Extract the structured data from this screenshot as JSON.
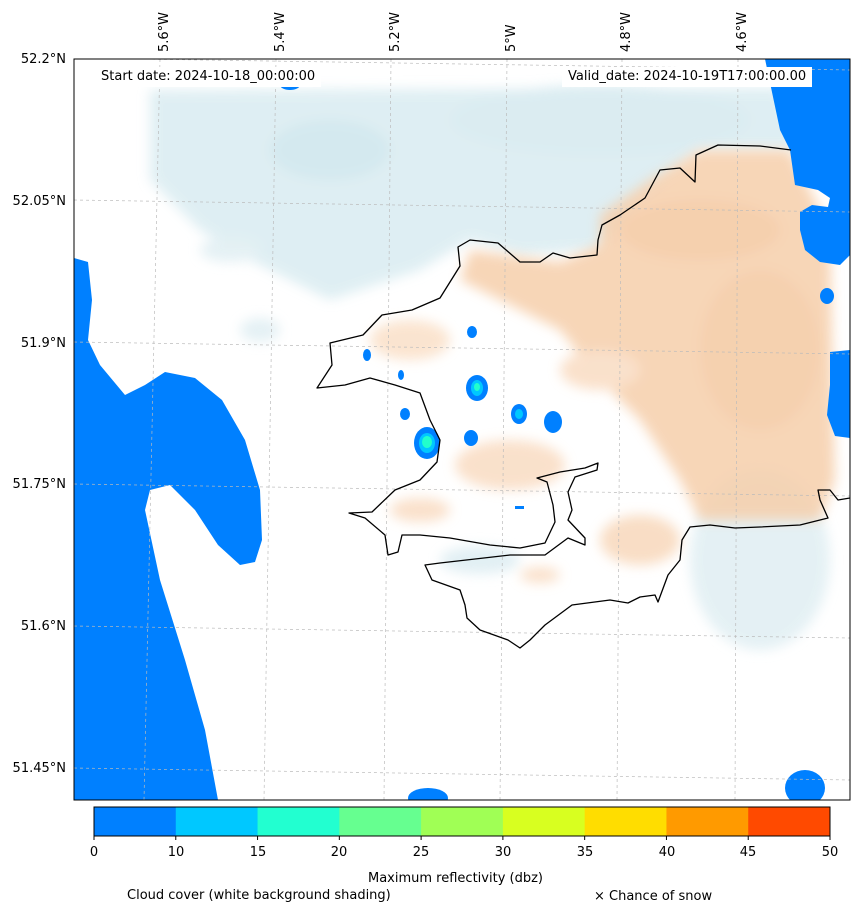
{
  "map": {
    "start_date": "Start date: 2024-10-18_00:00:00",
    "valid_date": "Valid_date: 2024-10-19T17:00:00.00",
    "lon_ticks": [
      "5.6°W",
      "5.4°W",
      "5.2°W",
      "5°W",
      "4.8°W",
      "4.6°W"
    ],
    "lat_ticks": [
      "52.2°N",
      "52.05°N",
      "51.9°N",
      "51.75°N",
      "51.6°N",
      "51.45°N"
    ],
    "colors": {
      "sea": "#0080ff",
      "cloud_shading": "#d4e9ef",
      "warm_shading": "#f6cfab",
      "echo_core": "#22ffcc",
      "coastline": "#000000"
    }
  },
  "colorbar": {
    "label": "Maximum reflectivity (dbz)",
    "ticks": [
      "0",
      "10",
      "15",
      "20",
      "25",
      "30",
      "35",
      "40",
      "45",
      "50"
    ],
    "colors": [
      "#0080ff",
      "#00c8ff",
      "#22ffd0",
      "#66ff90",
      "#a0ff55",
      "#d8ff20",
      "#ffdd00",
      "#ff9a00",
      "#ff4a00"
    ]
  },
  "legend": {
    "cloud_cover": "Cloud cover (white background shading)",
    "snow": "× Chance of snow"
  }
}
